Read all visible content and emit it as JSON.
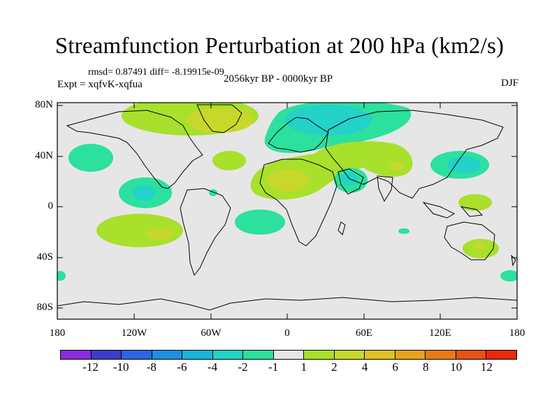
{
  "title": "Streamfunction Perturbation at 200 hPa (km2/s)",
  "stats": "rmsd= 0.87491 diff= -8.19915e-09",
  "period": "2056kyr BP - 0000kyr BP",
  "experiment": "Expt = xqfvK-xqfua",
  "season": "DJF",
  "axes": {
    "lat_labels": [
      "80N",
      "40N",
      "0",
      "40S",
      "80S"
    ],
    "lon_labels": [
      "180",
      "120W",
      "60W",
      "0",
      "60E",
      "120E",
      "180"
    ]
  },
  "legend": {
    "colors": [
      "#8a2be2",
      "#3c3cd0",
      "#2c64e6",
      "#1e90e0",
      "#19b4dc",
      "#23d2c8",
      "#2ce09e",
      "#e6e6e6",
      "#a8e02c",
      "#c8d82a",
      "#e0c222",
      "#e8a21c",
      "#e87a16",
      "#e85212",
      "#e82a0a"
    ],
    "labels": [
      "-12",
      "-10",
      "-8",
      "-6",
      "-4",
      "-2",
      "-1",
      "1",
      "2",
      "4",
      "6",
      "8",
      "10",
      "12"
    ]
  },
  "map_colors": {
    "background": "#e6e6e6",
    "neg_light": "#2ce09e",
    "neg_mid": "#23d2c8",
    "pos_light": "#a8e02c",
    "pos_mid": "#c8d82a",
    "pos_strong": "#e0c222"
  }
}
